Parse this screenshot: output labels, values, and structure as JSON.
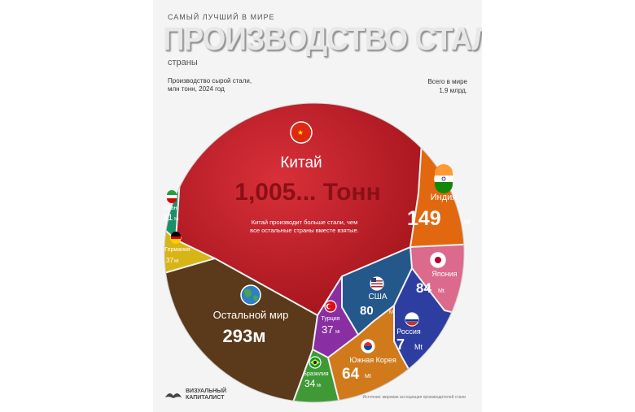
{
  "header": {
    "pretitle": "САМЫЙ ЛУЧШИЙ В МИРЕ",
    "title": "ПРОИЗВОДСТВО СТАЛИ",
    "subtitle": "страны",
    "unit_line1": "Производство сырой стали,",
    "unit_line2": "млн тонн, 2024 год",
    "total_line1": "Всего в мире",
    "total_line2": "1,9 млрд."
  },
  "china": {
    "name": "Китай",
    "value_text": "1,005... Тонн",
    "note_line1": "Китай производит больше стали, чем",
    "note_line2": "все остальные страны вместе взятые."
  },
  "cells": [
    {
      "id": "india",
      "name": "Индия",
      "value_text": "149",
      "unit": "Mt",
      "color": "#e2680f"
    },
    {
      "id": "japan",
      "name": "Япония",
      "value_text": "84",
      "unit": "Mt",
      "color": "#db6a8c"
    },
    {
      "id": "usa",
      "name": "США",
      "value_text": "80",
      "unit": "Mt",
      "color": "#24588a"
    },
    {
      "id": "russia",
      "name": "Россия",
      "value_text": "7",
      "unit": "Mt",
      "color": "#2e3ea0"
    },
    {
      "id": "korea",
      "name": "Южная Корея",
      "value_text": "64",
      "unit": "Mt",
      "color": "#d07a1c"
    },
    {
      "id": "brazil",
      "name": "Бразилия",
      "value_text": "34",
      "unit": "Mt",
      "color": "#3f9a36"
    },
    {
      "id": "turkey",
      "name": "Турция",
      "value_text": "37",
      "unit": "Mt",
      "color": "#8a2fa3"
    },
    {
      "id": "rest",
      "name": "Остальной мир",
      "value_text": "293м",
      "unit": "",
      "color": "#5a3a1a"
    },
    {
      "id": "germany",
      "name": "Германия",
      "value_text": "37",
      "unit": "Mt",
      "color": "#d8b516"
    },
    {
      "id": "iran",
      "name": "Иран",
      "value_text": "31",
      "unit": "Mt",
      "color": "#1b8f6a"
    }
  ],
  "footer": {
    "logo_line1": "ВИЗУАЛЬНЫЙ",
    "logo_line2": "КАПИТАЛИСТ",
    "note": "Источник: мировая ассоциация производителей стали"
  },
  "chart_data": {
    "type": "voronoi-treemap",
    "title": "ПРОИЗВОДСТВО СТАЛИ",
    "subtitle": "страны",
    "unit": "Производство сырой стали, млн тонн, 2024 год",
    "total": "1,9 млрд.",
    "series": [
      {
        "name": "Китай",
        "value": 1005
      },
      {
        "name": "Индия",
        "value": 149
      },
      {
        "name": "Япония",
        "value": 84
      },
      {
        "name": "США",
        "value": 80
      },
      {
        "name": "Россия",
        "value": 7
      },
      {
        "name": "Южная Корея",
        "value": 64
      },
      {
        "name": "Бразилия",
        "value": 34
      },
      {
        "name": "Турция",
        "value": 37
      },
      {
        "name": "Остальной мир",
        "value": 293
      },
      {
        "name": "Германия",
        "value": 37
      },
      {
        "name": "Иран",
        "value": 31
      }
    ]
  }
}
